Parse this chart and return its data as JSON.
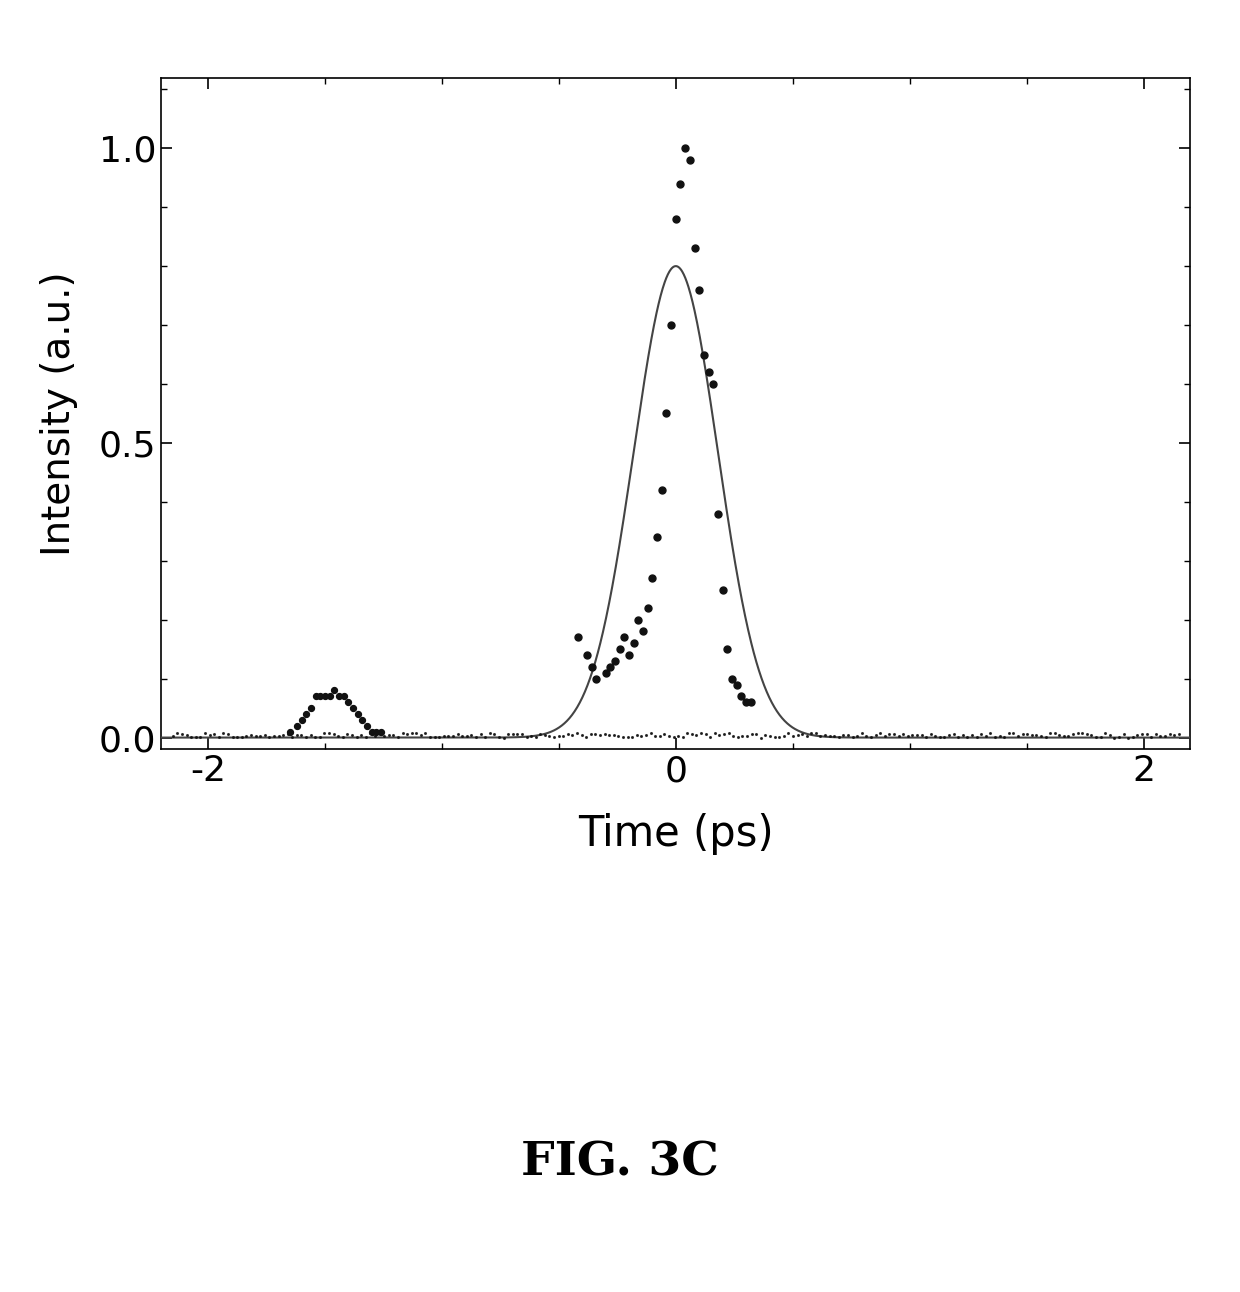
{
  "xlim": [
    -2.2,
    2.2
  ],
  "ylim": [
    -0.02,
    1.12
  ],
  "xticks_major": [
    -2,
    0,
    2
  ],
  "xticks_minor_spacing": 0.5,
  "yticks_major": [
    0.0,
    0.5,
    1.0
  ],
  "yticks_minor_spacing": 0.1,
  "xlabel": "Time (ps)",
  "ylabel": "Intensity (a.u.)",
  "fig_label": "FIG. 3C",
  "fit_peak": 0.0,
  "fit_amplitude": 0.8,
  "fit_sigma": 0.18,
  "scatter_points": [
    [
      -0.42,
      0.17
    ],
    [
      -0.38,
      0.14
    ],
    [
      -0.36,
      0.12
    ],
    [
      -0.34,
      0.1
    ],
    [
      -0.3,
      0.11
    ],
    [
      -0.28,
      0.12
    ],
    [
      -0.26,
      0.13
    ],
    [
      -0.24,
      0.15
    ],
    [
      -0.22,
      0.17
    ],
    [
      -0.2,
      0.14
    ],
    [
      -0.18,
      0.16
    ],
    [
      -0.16,
      0.2
    ],
    [
      -0.14,
      0.18
    ],
    [
      -0.12,
      0.22
    ],
    [
      -0.1,
      0.27
    ],
    [
      -0.08,
      0.34
    ],
    [
      -0.06,
      0.42
    ],
    [
      -0.04,
      0.55
    ],
    [
      -0.02,
      0.7
    ],
    [
      0.0,
      0.88
    ],
    [
      0.02,
      0.94
    ],
    [
      0.04,
      1.0
    ],
    [
      0.06,
      0.98
    ],
    [
      0.08,
      0.83
    ],
    [
      0.1,
      0.76
    ],
    [
      0.12,
      0.65
    ],
    [
      0.14,
      0.62
    ],
    [
      0.16,
      0.6
    ],
    [
      0.18,
      0.38
    ],
    [
      0.2,
      0.25
    ],
    [
      0.22,
      0.15
    ],
    [
      0.24,
      0.1
    ],
    [
      0.26,
      0.09
    ],
    [
      0.28,
      0.07
    ],
    [
      0.3,
      0.06
    ],
    [
      0.32,
      0.06
    ]
  ],
  "bump_points": [
    [
      -1.65,
      0.01
    ],
    [
      -1.62,
      0.02
    ],
    [
      -1.6,
      0.03
    ],
    [
      -1.58,
      0.04
    ],
    [
      -1.56,
      0.05
    ],
    [
      -1.54,
      0.07
    ],
    [
      -1.52,
      0.07
    ],
    [
      -1.5,
      0.07
    ],
    [
      -1.48,
      0.07
    ],
    [
      -1.46,
      0.08
    ],
    [
      -1.44,
      0.07
    ],
    [
      -1.42,
      0.07
    ],
    [
      -1.4,
      0.06
    ],
    [
      -1.38,
      0.05
    ],
    [
      -1.36,
      0.04
    ],
    [
      -1.34,
      0.03
    ],
    [
      -1.32,
      0.02
    ],
    [
      -1.3,
      0.01
    ],
    [
      -1.28,
      0.01
    ],
    [
      -1.26,
      0.01
    ]
  ],
  "background_color": "#ffffff",
  "scatter_color": "#111111",
  "fit_color": "#444444",
  "fit_linewidth": 1.5,
  "scatter_size": 25,
  "bump_size": 18,
  "noise_size": 6
}
